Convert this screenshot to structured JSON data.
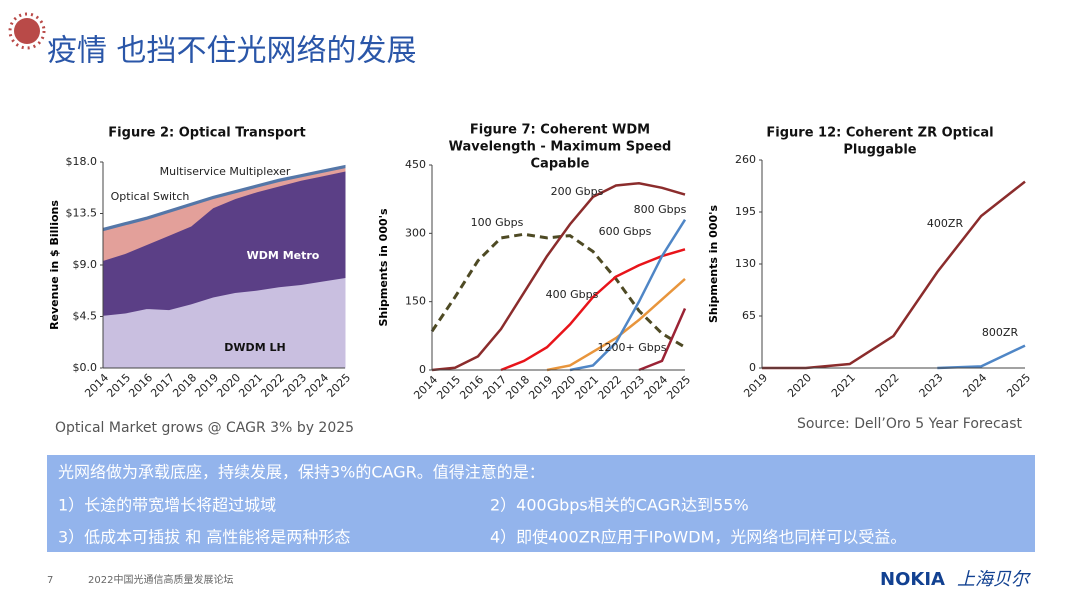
{
  "header": {
    "title": "疫情 也挡不住光网络的发展"
  },
  "chart_data": [
    {
      "type": "area",
      "stacked": true,
      "title": [
        "Figure 2: Optical Transport"
      ],
      "y_label": "Revenue in $ Billions",
      "categories": [
        "2014",
        "2015",
        "2016",
        "2017",
        "2018",
        "2019",
        "2020",
        "2021",
        "2022",
        "2023",
        "2024",
        "2025"
      ],
      "series": [
        {
          "name": "DWDM LH",
          "color": "#c9bfe0",
          "values": [
            4.6,
            4.8,
            5.2,
            5.1,
            5.6,
            6.2,
            6.6,
            6.8,
            7.1,
            7.3,
            7.6,
            7.9
          ]
        },
        {
          "name": "WDM Metro",
          "color": "#5b3f86",
          "values": [
            4.8,
            5.2,
            5.6,
            6.5,
            6.8,
            7.8,
            8.2,
            8.6,
            8.8,
            9.1,
            9.2,
            9.3
          ]
        },
        {
          "name": "Optical Switch",
          "color": "#e3a09a",
          "values": [
            2.6,
            2.5,
            2.2,
            2.0,
            1.8,
            0.8,
            0.5,
            0.4,
            0.4,
            0.3,
            0.3,
            0.3
          ]
        },
        {
          "name": "Multiservice Multiplexer",
          "color": "#5577a8",
          "values": [
            0.2,
            0.2,
            0.2,
            0.2,
            0.2,
            0.2,
            0.2,
            0.2,
            0.2,
            0.2,
            0.2,
            0.2
          ]
        }
      ],
      "ylim": [
        0,
        18
      ],
      "yticks": [
        {
          "value": 0,
          "label": "$0.0"
        },
        {
          "value": 4.5,
          "label": "$4.5"
        },
        {
          "value": 9,
          "label": "$9.0"
        },
        {
          "value": 13.5,
          "label": "$13.5"
        },
        {
          "value": 18,
          "label": "$18.0"
        }
      ]
    },
    {
      "type": "line",
      "title": [
        "Figure 7: Coherent WDM",
        "Wavelength - Maximum Speed",
        "Capable"
      ],
      "y_label": "Shipments in 000's",
      "categories": [
        "2014",
        "2015",
        "2016",
        "2017",
        "2018",
        "2019",
        "2020",
        "2021",
        "2022",
        "2023",
        "2024",
        "2025"
      ],
      "series": [
        {
          "name": "100 Gbps",
          "color": "#4e4a24",
          "dashed": true,
          "values": [
            85,
            160,
            240,
            290,
            298,
            290,
            295,
            260,
            200,
            130,
            80,
            50
          ]
        },
        {
          "name": "200 Gbps",
          "color": "#8b2c2c",
          "values": [
            0,
            5,
            30,
            90,
            170,
            250,
            320,
            380,
            405,
            410,
            400,
            385
          ]
        },
        {
          "name": "400 Gbps",
          "color": "#e8141a",
          "values": [
            null,
            null,
            null,
            0,
            20,
            50,
            100,
            160,
            205,
            230,
            250,
            265
          ]
        },
        {
          "name": "600 Gbps",
          "color": "#e8953c",
          "values": [
            null,
            null,
            null,
            null,
            null,
            0,
            10,
            40,
            70,
            110,
            155,
            200
          ]
        },
        {
          "name": "800 Gbps",
          "color": "#4f86c6",
          "values": [
            null,
            null,
            null,
            null,
            null,
            null,
            0,
            10,
            60,
            150,
            250,
            330
          ]
        },
        {
          "name": "1200+ Gbps",
          "color": "#9b2335",
          "values": [
            null,
            null,
            null,
            null,
            null,
            null,
            null,
            null,
            null,
            0,
            20,
            135
          ]
        }
      ],
      "ylim": [
        0,
        450
      ],
      "yticks": [
        0,
        150,
        300,
        450
      ]
    },
    {
      "type": "line",
      "title": [
        "Figure 12: Coherent ZR Optical",
        "Pluggable"
      ],
      "y_label": "Shipments in 000's",
      "categories": [
        "2019",
        "2020",
        "2021",
        "2022",
        "2023",
        "2024",
        "2025"
      ],
      "series": [
        {
          "name": "400ZR",
          "color": "#8b2c2c",
          "values": [
            0,
            0,
            5,
            40,
            120,
            190,
            233
          ]
        },
        {
          "name": "800ZR",
          "color": "#4f86c6",
          "values": [
            null,
            null,
            null,
            null,
            0,
            2,
            28
          ]
        }
      ],
      "ylim": [
        0,
        260
      ],
      "yticks": [
        0,
        65,
        130,
        195,
        260
      ]
    }
  ],
  "captions": [
    "Optical Market grows @ CAGR 3% by 2025",
    "Source: Dell’Oro 5 Year Forecast"
  ],
  "summary": {
    "intro": "光网络做为承载底座，持续发展，保持3%的CAGR。值得注意的是：",
    "items": [
      "1）长途的带宽增长将超过城域",
      "2）400Gbps相关的CAGR达到55%",
      "3）低成本可插拔 和 高性能将是两种形态",
      "4）即使400ZR应用于IPoWDM，光网络也同样可以受益。"
    ]
  },
  "footer": {
    "page": "7",
    "event": "2022中国光通信高质量发展论坛",
    "brand": "NOKIA",
    "brand_cn": "上海贝尔"
  }
}
